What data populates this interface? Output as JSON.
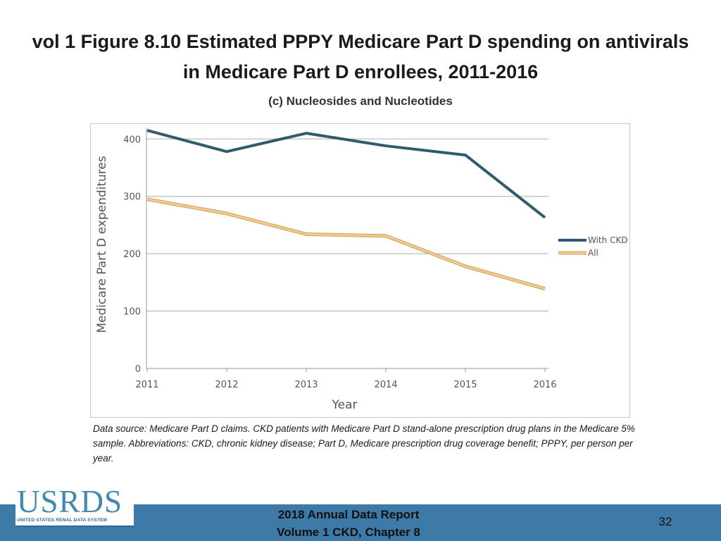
{
  "slide": {
    "title": "vol 1 Figure 8.10 Estimated PPPY Medicare Part D spending on antivirals in Medicare Part D enrollees, 2011-2016",
    "caption": "Data source: Medicare Part D claims. CKD patients with Medicare Part D stand-alone prescription drug plans in the Medicare 5% sample. Abbreviations: CKD, chronic kidney disease; Part D, Medicare prescription drug coverage benefit; PPPY, per person per year.",
    "footer_line1": "2018 Annual Data Report",
    "footer_line2": "Volume 1 CKD, Chapter 8",
    "page_number": "32",
    "logo_text": "USRDS",
    "logo_subtext": "UNITED STATES RENAL DATA SYSTEM"
  },
  "chart_data": {
    "type": "line",
    "title": "(c) Nucleosides and Nucleotides",
    "xlabel": "Year",
    "ylabel": "Medicare Part D expenditures",
    "categories": [
      "2011",
      "2012",
      "2013",
      "2014",
      "2015",
      "2016"
    ],
    "ylim": [
      0,
      420
    ],
    "yticks": [
      0,
      100,
      200,
      300,
      400
    ],
    "grid": true,
    "legend_position": "right",
    "series": [
      {
        "name": "With CKD",
        "values": [
          415,
          378,
          410,
          388,
          372,
          263
        ],
        "color": "#2e5b6e"
      },
      {
        "name": "All",
        "values": [
          295,
          270,
          234,
          231,
          178,
          139
        ],
        "color": "#f5c98a"
      }
    ]
  }
}
